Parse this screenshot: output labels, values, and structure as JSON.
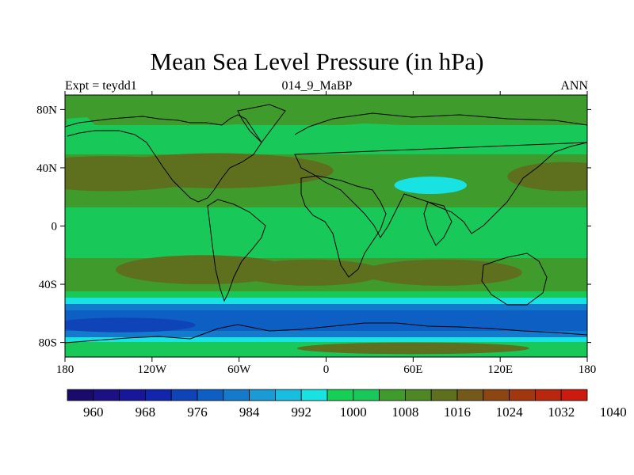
{
  "title": "Mean Sea Level Pressure (in hPa)",
  "subtitle_left": "Expt = teydd1",
  "subtitle_center": "014_9_MaBP",
  "subtitle_right": "ANN",
  "chart_data": {
    "type": "heatmap",
    "title": "Mean Sea Level Pressure (in hPa)",
    "x_ticks": [
      {
        "value": -180,
        "label": "180"
      },
      {
        "value": -120,
        "label": "120W"
      },
      {
        "value": -60,
        "label": "60W"
      },
      {
        "value": 0,
        "label": "0"
      },
      {
        "value": 60,
        "label": "60E"
      },
      {
        "value": 120,
        "label": "120E"
      },
      {
        "value": 180,
        "label": "180"
      }
    ],
    "y_ticks": [
      {
        "value": 80,
        "label": "80N"
      },
      {
        "value": 40,
        "label": "40N"
      },
      {
        "value": 0,
        "label": "0"
      },
      {
        "value": -40,
        "label": "40S"
      },
      {
        "value": -80,
        "label": "80S"
      }
    ],
    "xlim": [
      -180,
      180
    ],
    "ylim": [
      -90,
      90
    ],
    "colorbar": {
      "levels": [
        960,
        964,
        968,
        972,
        976,
        980,
        984,
        988,
        992,
        996,
        1000,
        1004,
        1008,
        1012,
        1016,
        1020,
        1024,
        1028,
        1032,
        1036,
        1040
      ],
      "colors": [
        "#1a0a6b",
        "#1d0f86",
        "#18169b",
        "#1226ad",
        "#0e44b8",
        "#0e5fc3",
        "#137acc",
        "#1a9bd6",
        "#19bde0",
        "#19e2e3",
        "#15d055",
        "#18c95a",
        "#3f9b2c",
        "#4f8626",
        "#5e6f1e",
        "#74591a",
        "#8d4612",
        "#a2360f",
        "#b8270e",
        "#cc1a0e"
      ],
      "labels": [
        "960",
        "968",
        "976",
        "984",
        "992",
        "1000",
        "1008",
        "1016",
        "1024",
        "1032",
        "1040"
      ]
    },
    "regions": [
      {
        "name": "subtropical-high-north-pacific-west",
        "lon": -150,
        "lat": 36,
        "dlon": 70,
        "dlat": 12,
        "value": 1018
      },
      {
        "name": "subtropical-high-north-atlantic",
        "lon": -75,
        "lat": 38,
        "dlon": 80,
        "dlat": 12,
        "value": 1018
      },
      {
        "name": "subtropical-high-north-pacific-east",
        "lon": 165,
        "lat": 34,
        "dlon": 40,
        "dlat": 10,
        "value": 1018
      },
      {
        "name": "subtropical-high-south-pacific",
        "lon": -85,
        "lat": -30,
        "dlon": 60,
        "dlat": 10,
        "value": 1018
      },
      {
        "name": "subtropical-high-south-atlantic",
        "lon": -10,
        "lat": -32,
        "dlon": 50,
        "dlat": 9,
        "value": 1018
      },
      {
        "name": "subtropical-high-indian-ocean",
        "lon": 80,
        "lat": -32,
        "dlon": 55,
        "dlat": 9,
        "value": 1018
      },
      {
        "name": "asian-low",
        "lon": 72,
        "lat": 28,
        "dlon": 25,
        "dlat": 6,
        "value": 999
      },
      {
        "name": "antarctic-trough",
        "lon": -140,
        "lat": -68,
        "dlon": 50,
        "dlat": 5,
        "value": 978
      },
      {
        "name": "antarctic-high",
        "lon": 60,
        "lat": -84,
        "dlon": 80,
        "dlat": 4,
        "value": 1018
      }
    ]
  }
}
